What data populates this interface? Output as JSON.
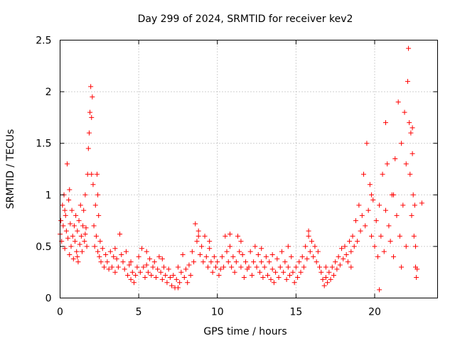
{
  "chart_data": {
    "type": "scatter",
    "title": "Day 299 of 2024, SRMTID for receiver kev2",
    "xlabel": "GPS time / hours",
    "ylabel": "SRMTID / TECUs",
    "xlim": [
      0,
      24
    ],
    "ylim": [
      0,
      2.5
    ],
    "xticks": [
      0,
      5,
      10,
      15,
      20
    ],
    "xtick_labels": [
      "0",
      "5",
      "10",
      "15",
      "20"
    ],
    "yticks": [
      0,
      0.5,
      1,
      1.5,
      2,
      2.5
    ],
    "ytick_labels": [
      "0",
      "0.5",
      "1",
      "1.5",
      "2",
      "2.5"
    ],
    "grid": true,
    "marker": "+",
    "color": "#ff0000",
    "series": [
      {
        "name": "SRMTID",
        "points": [
          [
            0.0,
            0.62
          ],
          [
            0.05,
            0.75
          ],
          [
            0.1,
            0.55
          ],
          [
            0.15,
            0.9
          ],
          [
            0.2,
            0.7
          ],
          [
            0.25,
            1.0
          ],
          [
            0.3,
            0.48
          ],
          [
            0.35,
            0.8
          ],
          [
            0.4,
            0.65
          ],
          [
            0.45,
            1.3
          ],
          [
            0.5,
            0.58
          ],
          [
            0.55,
            0.95
          ],
          [
            0.6,
            0.42
          ],
          [
            0.65,
            0.72
          ],
          [
            0.7,
            0.5
          ],
          [
            0.75,
            0.85
          ],
          [
            0.8,
            0.6
          ],
          [
            0.85,
            0.38
          ],
          [
            0.9,
            0.7
          ],
          [
            0.95,
            0.55
          ],
          [
            1.0,
            0.8
          ],
          [
            1.05,
            0.45
          ],
          [
            1.1,
            0.65
          ],
          [
            1.15,
            0.35
          ],
          [
            1.2,
            0.75
          ],
          [
            1.25,
            0.52
          ],
          [
            1.3,
            0.9
          ],
          [
            1.35,
            0.6
          ],
          [
            1.4,
            0.45
          ],
          [
            1.45,
            0.7
          ],
          [
            1.5,
            0.85
          ],
          [
            1.55,
            0.55
          ],
          [
            1.6,
            1.0
          ],
          [
            1.65,
            0.68
          ],
          [
            1.7,
            0.5
          ],
          [
            1.75,
            1.2
          ],
          [
            1.8,
            1.45
          ],
          [
            1.85,
            1.6
          ],
          [
            1.9,
            1.8
          ],
          [
            1.95,
            2.05
          ],
          [
            2.0,
            1.75
          ],
          [
            2.05,
            1.95
          ],
          [
            2.1,
            1.1
          ],
          [
            2.15,
            0.7
          ],
          [
            2.2,
            0.5
          ],
          [
            2.25,
            0.9
          ],
          [
            2.3,
            0.6
          ],
          [
            2.35,
            1.2
          ],
          [
            2.4,
            0.45
          ],
          [
            2.45,
            0.8
          ],
          [
            2.5,
            0.4
          ],
          [
            2.55,
            0.55
          ],
          [
            2.6,
            0.35
          ],
          [
            2.7,
            0.48
          ],
          [
            2.8,
            0.3
          ],
          [
            2.9,
            0.42
          ],
          [
            3.0,
            0.35
          ],
          [
            3.1,
            0.28
          ],
          [
            3.2,
            0.45
          ],
          [
            3.3,
            0.3
          ],
          [
            3.4,
            0.4
          ],
          [
            3.5,
            0.25
          ],
          [
            3.6,
            0.38
          ],
          [
            3.7,
            0.3
          ],
          [
            3.8,
            0.62
          ],
          [
            3.9,
            0.42
          ],
          [
            4.0,
            0.35
          ],
          [
            4.1,
            0.28
          ],
          [
            4.2,
            0.45
          ],
          [
            4.3,
            0.22
          ],
          [
            4.4,
            0.32
          ],
          [
            4.5,
            0.18
          ],
          [
            4.6,
            0.25
          ],
          [
            4.7,
            0.15
          ],
          [
            4.8,
            0.22
          ],
          [
            4.9,
            0.3
          ],
          [
            5.0,
            0.4
          ],
          [
            5.1,
            0.25
          ],
          [
            5.2,
            0.48
          ],
          [
            5.3,
            0.3
          ],
          [
            5.4,
            0.2
          ],
          [
            5.5,
            0.32
          ],
          [
            5.6,
            0.25
          ],
          [
            5.7,
            0.38
          ],
          [
            5.8,
            0.22
          ],
          [
            5.9,
            0.3
          ],
          [
            6.0,
            0.35
          ],
          [
            6.1,
            0.2
          ],
          [
            6.2,
            0.28
          ],
          [
            6.3,
            0.4
          ],
          [
            6.4,
            0.25
          ],
          [
            6.5,
            0.18
          ],
          [
            6.6,
            0.3
          ],
          [
            6.7,
            0.22
          ],
          [
            6.8,
            0.15
          ],
          [
            6.9,
            0.28
          ],
          [
            7.0,
            0.2
          ],
          [
            7.1,
            0.12
          ],
          [
            7.2,
            0.22
          ],
          [
            7.3,
            0.1
          ],
          [
            7.4,
            0.18
          ],
          [
            7.5,
            0.3
          ],
          [
            7.6,
            0.15
          ],
          [
            7.7,
            0.25
          ],
          [
            7.8,
            0.42
          ],
          [
            7.9,
            0.2
          ],
          [
            8.0,
            0.28
          ],
          [
            8.1,
            0.15
          ],
          [
            8.2,
            0.32
          ],
          [
            8.3,
            0.22
          ],
          [
            8.4,
            0.45
          ],
          [
            8.5,
            0.35
          ],
          [
            8.6,
            0.72
          ],
          [
            8.7,
            0.55
          ],
          [
            8.8,
            0.6
          ],
          [
            8.9,
            0.42
          ],
          [
            9.0,
            0.5
          ],
          [
            9.1,
            0.35
          ],
          [
            9.2,
            0.6
          ],
          [
            9.3,
            0.4
          ],
          [
            9.4,
            0.3
          ],
          [
            9.5,
            0.48
          ],
          [
            9.6,
            0.35
          ],
          [
            9.7,
            0.25
          ],
          [
            9.8,
            0.4
          ],
          [
            9.9,
            0.3
          ],
          [
            10.0,
            0.35
          ],
          [
            10.1,
            0.22
          ],
          [
            10.2,
            0.28
          ],
          [
            10.3,
            0.4
          ],
          [
            10.4,
            0.3
          ],
          [
            10.5,
            0.6
          ],
          [
            10.6,
            0.45
          ],
          [
            10.7,
            0.35
          ],
          [
            10.8,
            0.5
          ],
          [
            10.9,
            0.3
          ],
          [
            11.0,
            0.4
          ],
          [
            11.1,
            0.25
          ],
          [
            11.2,
            0.35
          ],
          [
            11.3,
            0.6
          ],
          [
            11.4,
            0.45
          ],
          [
            11.5,
            0.3
          ],
          [
            11.6,
            0.42
          ],
          [
            11.7,
            0.2
          ],
          [
            11.8,
            0.35
          ],
          [
            11.9,
            0.28
          ],
          [
            12.0,
            0.3
          ],
          [
            12.1,
            0.45
          ],
          [
            12.2,
            0.22
          ],
          [
            12.3,
            0.35
          ],
          [
            12.4,
            0.5
          ],
          [
            12.5,
            0.3
          ],
          [
            12.6,
            0.42
          ],
          [
            12.7,
            0.25
          ],
          [
            12.8,
            0.35
          ],
          [
            12.9,
            0.2
          ],
          [
            13.0,
            0.3
          ],
          [
            13.1,
            0.4
          ],
          [
            13.2,
            0.22
          ],
          [
            13.3,
            0.35
          ],
          [
            13.4,
            0.18
          ],
          [
            13.5,
            0.28
          ],
          [
            13.6,
            0.15
          ],
          [
            13.7,
            0.25
          ],
          [
            13.8,
            0.38
          ],
          [
            13.9,
            0.2
          ],
          [
            14.0,
            0.3
          ],
          [
            14.1,
            0.45
          ],
          [
            14.2,
            0.25
          ],
          [
            14.3,
            0.35
          ],
          [
            14.4,
            0.18
          ],
          [
            14.5,
            0.3
          ],
          [
            14.6,
            0.22
          ],
          [
            14.7,
            0.4
          ],
          [
            14.8,
            0.25
          ],
          [
            14.9,
            0.15
          ],
          [
            15.0,
            0.3
          ],
          [
            15.1,
            0.2
          ],
          [
            15.2,
            0.35
          ],
          [
            15.3,
            0.25
          ],
          [
            15.4,
            0.4
          ],
          [
            15.5,
            0.3
          ],
          [
            15.6,
            0.5
          ],
          [
            15.7,
            0.38
          ],
          [
            15.8,
            0.6
          ],
          [
            15.9,
            0.45
          ],
          [
            16.0,
            0.55
          ],
          [
            16.1,
            0.4
          ],
          [
            16.2,
            0.5
          ],
          [
            16.3,
            0.35
          ],
          [
            16.4,
            0.45
          ],
          [
            16.5,
            0.3
          ],
          [
            16.6,
            0.25
          ],
          [
            16.7,
            0.18
          ],
          [
            16.8,
            0.12
          ],
          [
            16.9,
            0.2
          ],
          [
            17.0,
            0.15
          ],
          [
            17.1,
            0.25
          ],
          [
            17.2,
            0.18
          ],
          [
            17.3,
            0.3
          ],
          [
            17.4,
            0.22
          ],
          [
            17.5,
            0.35
          ],
          [
            17.6,
            0.28
          ],
          [
            17.7,
            0.4
          ],
          [
            17.8,
            0.32
          ],
          [
            17.9,
            0.48
          ],
          [
            18.0,
            0.38
          ],
          [
            18.1,
            0.5
          ],
          [
            18.2,
            0.42
          ],
          [
            18.3,
            0.35
          ],
          [
            18.4,
            0.55
          ],
          [
            18.5,
            0.45
          ],
          [
            18.6,
            0.6
          ],
          [
            18.7,
            0.5
          ],
          [
            18.8,
            0.75
          ],
          [
            18.9,
            0.55
          ],
          [
            19.0,
            0.9
          ],
          [
            19.1,
            0.65
          ],
          [
            19.2,
            0.8
          ],
          [
            19.3,
            1.2
          ],
          [
            19.4,
            0.7
          ],
          [
            19.5,
            1.5
          ],
          [
            19.6,
            0.85
          ],
          [
            19.7,
            1.1
          ],
          [
            19.8,
            0.6
          ],
          [
            19.9,
            0.95
          ],
          [
            20.0,
            0.5
          ],
          [
            20.1,
            0.75
          ],
          [
            20.2,
            0.4
          ],
          [
            20.3,
            0.9
          ],
          [
            20.4,
            0.6
          ],
          [
            20.5,
            1.2
          ],
          [
            20.6,
            0.45
          ],
          [
            20.7,
            0.85
          ],
          [
            20.8,
            1.3
          ],
          [
            20.9,
            0.7
          ],
          [
            21.0,
            0.55
          ],
          [
            21.1,
            1.0
          ],
          [
            21.2,
            0.4
          ],
          [
            21.3,
            1.35
          ],
          [
            21.4,
            0.8
          ],
          [
            21.5,
            1.9
          ],
          [
            21.6,
            0.6
          ],
          [
            21.7,
            1.5
          ],
          [
            21.8,
            0.9
          ],
          [
            21.9,
            1.8
          ],
          [
            22.0,
            0.5
          ],
          [
            22.1,
            2.1
          ],
          [
            22.15,
            2.42
          ],
          [
            22.2,
            1.7
          ],
          [
            22.25,
            1.2
          ],
          [
            22.3,
            1.6
          ],
          [
            22.35,
            0.8
          ],
          [
            22.4,
            1.4
          ],
          [
            22.45,
            1.0
          ],
          [
            22.5,
            0.6
          ],
          [
            22.55,
            0.9
          ],
          [
            22.6,
            0.3
          ],
          [
            22.65,
            0.2
          ],
          [
            22.7,
            0.28
          ],
          [
            0.3,
            0.85
          ],
          [
            0.6,
            1.05
          ],
          [
            1.1,
            0.4
          ],
          [
            1.6,
            0.62
          ],
          [
            2.0,
            1.2
          ],
          [
            2.4,
            1.0
          ],
          [
            3.5,
            0.48
          ],
          [
            4.5,
            0.35
          ],
          [
            5.5,
            0.45
          ],
          [
            6.5,
            0.38
          ],
          [
            7.5,
            0.1
          ],
          [
            8.8,
            0.65
          ],
          [
            9.5,
            0.55
          ],
          [
            10.8,
            0.62
          ],
          [
            11.5,
            0.55
          ],
          [
            12.8,
            0.48
          ],
          [
            13.5,
            0.42
          ],
          [
            14.5,
            0.5
          ],
          [
            15.8,
            0.65
          ],
          [
            16.9,
            0.3
          ],
          [
            18.5,
            0.3
          ],
          [
            19.8,
            1.0
          ],
          [
            20.3,
            0.08
          ],
          [
            20.7,
            1.7
          ],
          [
            21.2,
            1.0
          ],
          [
            21.7,
            0.3
          ],
          [
            22.0,
            1.3
          ],
          [
            22.4,
            1.65
          ],
          [
            22.6,
            0.5
          ],
          [
            23.0,
            0.92
          ]
        ]
      }
    ]
  }
}
